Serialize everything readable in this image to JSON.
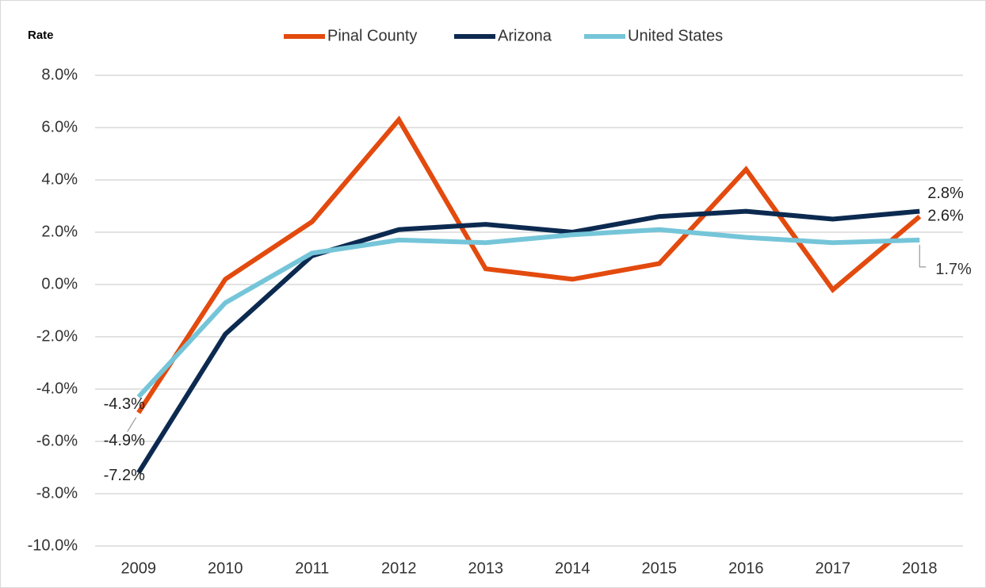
{
  "chart_data": {
    "type": "line",
    "y_axis_label": "Rate",
    "categories": [
      "2009",
      "2010",
      "2011",
      "2012",
      "2013",
      "2014",
      "2015",
      "2016",
      "2017",
      "2018"
    ],
    "series": [
      {
        "name": "Pinal County",
        "color": "#e34a0e",
        "values": [
          -4.9,
          0.2,
          2.4,
          6.3,
          0.6,
          0.2,
          0.8,
          4.4,
          -0.2,
          2.6
        ],
        "value_labels": [
          "-4.9%",
          null,
          null,
          null,
          null,
          null,
          null,
          null,
          null,
          "2.6%"
        ]
      },
      {
        "name": "Arizona",
        "color": "#0c2a50",
        "values": [
          -7.2,
          -1.9,
          1.1,
          2.1,
          2.3,
          2.0,
          2.6,
          2.8,
          2.5,
          2.8
        ],
        "value_labels": [
          "-7.2%",
          null,
          null,
          null,
          null,
          null,
          null,
          null,
          null,
          "2.8%"
        ]
      },
      {
        "name": "United States",
        "color": "#75c5d9",
        "values": [
          -4.3,
          -0.7,
          1.2,
          1.7,
          1.6,
          1.9,
          2.1,
          1.8,
          1.6,
          1.7
        ],
        "value_labels": [
          "-4.3%",
          null,
          null,
          null,
          null,
          null,
          null,
          null,
          null,
          "1.7%"
        ]
      }
    ],
    "ylim": [
      -10,
      8
    ],
    "yticks": [
      {
        "value": -10,
        "label": "-10.0%"
      },
      {
        "value": -8,
        "label": "-8.0%"
      },
      {
        "value": -6,
        "label": "-6.0%"
      },
      {
        "value": -4,
        "label": "-4.0%"
      },
      {
        "value": -2,
        "label": "-2.0%"
      },
      {
        "value": 0,
        "label": "0.0%"
      },
      {
        "value": 2,
        "label": "2.0%"
      },
      {
        "value": 4,
        "label": "4.0%"
      },
      {
        "value": 6,
        "label": "6.0%"
      },
      {
        "value": 8,
        "label": "8.0%"
      }
    ],
    "grid": true,
    "legend": "top"
  }
}
